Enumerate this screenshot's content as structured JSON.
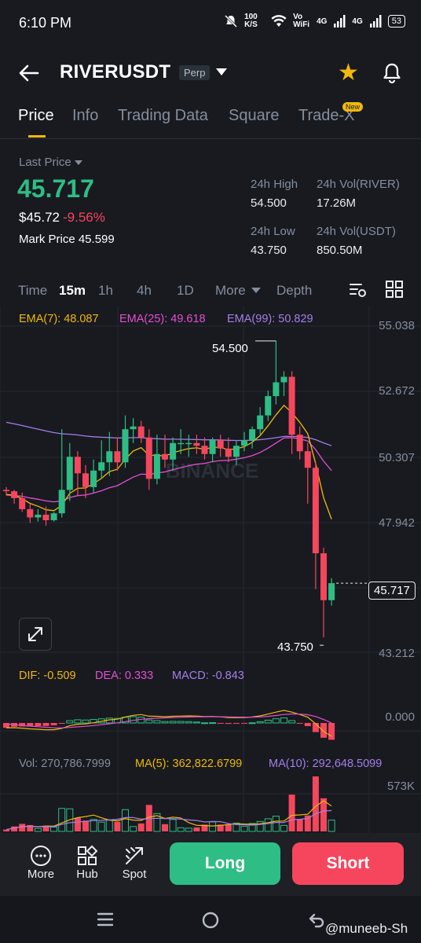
{
  "status": {
    "time": "6:10 PM",
    "net_speed": "100 K/S",
    "vowifi": "Vo WiFi",
    "net1": "4G",
    "net2": "4G",
    "battery": "53"
  },
  "header": {
    "symbol": "RIVERUSDT",
    "badge": "Perp"
  },
  "tabs": [
    {
      "label": "Price"
    },
    {
      "label": "Info"
    },
    {
      "label": "Trading Data"
    },
    {
      "label": "Square"
    },
    {
      "label": "Trade-X"
    }
  ],
  "new_badge": "New",
  "ticker": {
    "last_price_label": "Last Price",
    "last_price": "45.717",
    "usd_price": "$45.72",
    "change": "-9.56%",
    "mark_price": "Mark Price 45.599",
    "high_label": "24h High",
    "high": "54.500",
    "low_label": "24h Low",
    "low": "43.750",
    "vol_river_label": "24h Vol(RIVER)",
    "vol_river": "17.26M",
    "vol_usdt_label": "24h Vol(USDT)",
    "vol_usdt": "850.50M"
  },
  "timeframes": [
    "Time",
    "15m",
    "1h",
    "4h",
    "1D",
    "More",
    "Depth"
  ],
  "ema": {
    "ema7": "EMA(7): 48.087",
    "ema25": "EMA(25): 49.618",
    "ema99": "EMA(99): 50.829"
  },
  "price_axis": [
    "55.038",
    "52.672",
    "50.307",
    "47.942",
    "45.717",
    "43.212"
  ],
  "chart_labels": {
    "high": "54.500",
    "low": "43.750",
    "watermark": "BINANCE"
  },
  "macd": {
    "dif": "DIF: -0.509",
    "dea": "DEA: 0.333",
    "macd": "MACD: -0.843",
    "axis_zero": "0.000"
  },
  "volume": {
    "vol": "Vol: 270,786.7999",
    "ma5": "MA(5): 362,822.6799",
    "ma10": "MA(10): 292,648.5099",
    "axis_top": "573K"
  },
  "bottom": {
    "more": "More",
    "hub": "Hub",
    "spot": "Spot",
    "long": "Long",
    "short": "Short"
  },
  "watermark_user": "@muneeb-Sh",
  "colors": {
    "up": "#2ebd85",
    "down": "#f6465d",
    "accent": "#f0b90b",
    "ema7": "#f0b90b",
    "ema25": "#e44ed3",
    "ema99": "#a57ee8"
  },
  "chart_data": {
    "type": "candlestick",
    "interval": "15m",
    "ylim": [
      43.212,
      55.038
    ],
    "candles": [
      [
        49.1,
        49.2,
        48.9,
        49.05
      ],
      [
        49.05,
        49.1,
        48.6,
        48.8
      ],
      [
        48.8,
        49.0,
        48.3,
        48.4
      ],
      [
        48.4,
        48.6,
        47.9,
        48.1
      ],
      [
        48.1,
        48.4,
        47.95,
        48.2
      ],
      [
        48.2,
        48.5,
        47.8,
        48.0
      ],
      [
        48.0,
        48.3,
        47.95,
        48.25
      ],
      [
        48.25,
        51.3,
        48.1,
        49.1
      ],
      [
        49.1,
        50.8,
        48.7,
        50.3
      ],
      [
        50.3,
        50.5,
        48.9,
        49.7
      ],
      [
        49.7,
        50.0,
        48.8,
        49.2
      ],
      [
        49.2,
        50.2,
        49.0,
        49.8
      ],
      [
        49.8,
        50.9,
        49.5,
        50.1
      ],
      [
        50.1,
        51.2,
        49.6,
        50.5
      ],
      [
        50.5,
        51.0,
        49.8,
        50.1
      ],
      [
        50.1,
        51.8,
        49.9,
        51.3
      ],
      [
        51.3,
        51.7,
        50.8,
        51.4
      ],
      [
        51.4,
        51.6,
        50.8,
        51.0
      ],
      [
        51.0,
        51.3,
        49.1,
        49.5
      ],
      [
        49.5,
        51.1,
        49.3,
        50.4
      ],
      [
        50.4,
        51.1,
        49.9,
        50.2
      ],
      [
        50.2,
        51.0,
        49.8,
        50.8
      ],
      [
        50.8,
        51.3,
        50.4,
        50.8
      ],
      [
        50.8,
        51.1,
        50.3,
        50.8
      ],
      [
        50.8,
        51.1,
        50.4,
        50.7
      ],
      [
        50.7,
        51.0,
        50.2,
        50.4
      ],
      [
        50.4,
        51.0,
        50.1,
        50.9
      ],
      [
        50.9,
        51.1,
        50.3,
        50.6
      ],
      [
        50.6,
        51.0,
        50.1,
        50.3
      ],
      [
        50.3,
        50.9,
        50.0,
        50.7
      ],
      [
        50.7,
        51.2,
        50.5,
        50.9
      ],
      [
        50.9,
        51.4,
        50.6,
        51.3
      ],
      [
        51.3,
        52.1,
        51.1,
        51.8
      ],
      [
        51.8,
        52.7,
        51.6,
        52.5
      ],
      [
        52.5,
        54.5,
        52.2,
        53.0
      ],
      [
        53.0,
        53.4,
        52.5,
        53.2
      ],
      [
        53.2,
        53.4,
        50.4,
        51.1
      ],
      [
        51.1,
        51.4,
        50.2,
        50.5
      ],
      [
        50.5,
        50.8,
        48.6,
        49.9
      ],
      [
        49.9,
        50.1,
        45.5,
        46.8
      ],
      [
        46.8,
        47.0,
        43.75,
        45.1
      ],
      [
        45.1,
        45.9,
        44.9,
        45.717
      ]
    ]
  }
}
